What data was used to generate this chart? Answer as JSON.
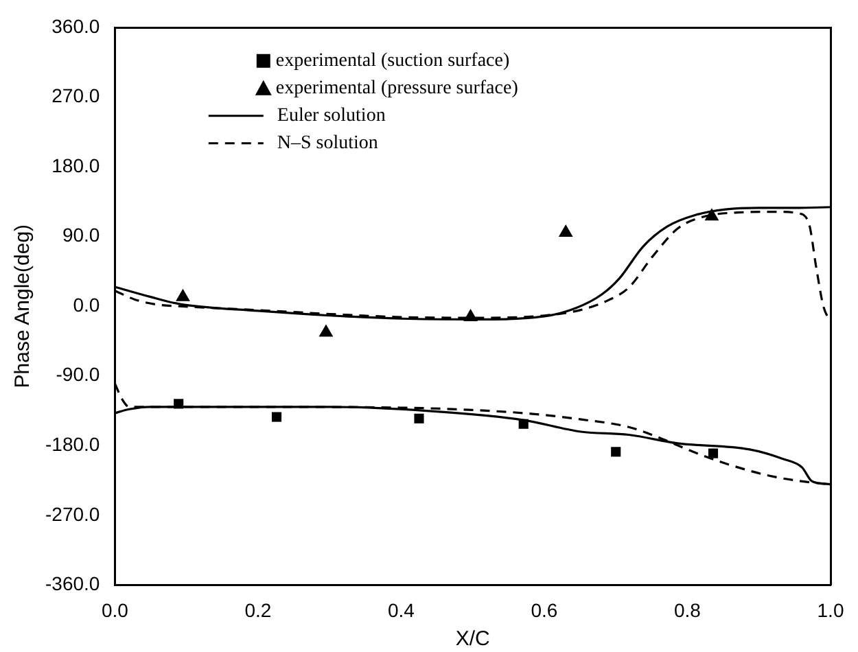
{
  "chart_data": {
    "type": "line",
    "xlabel": "X/C",
    "ylabel": "Phase Angle(deg)",
    "xlim": [
      0,
      1
    ],
    "xticks": [
      {
        "value": 0,
        "label": "0.0"
      },
      {
        "value": 0.2,
        "label": "0.2"
      },
      {
        "value": 0.4,
        "label": "0.4"
      },
      {
        "value": 0.6,
        "label": "0.6"
      },
      {
        "value": 0.8,
        "label": "0.8"
      },
      {
        "value": 1,
        "label": "1.0"
      }
    ],
    "ylim": [
      -360,
      360
    ],
    "yticks": [
      {
        "value": -360,
        "label": "-360.0"
      },
      {
        "value": -270,
        "label": "-270.0"
      },
      {
        "value": -180,
        "label": "-180.0"
      },
      {
        "value": -90,
        "label": "-90.0"
      },
      {
        "value": 0,
        "label": "0.0"
      },
      {
        "value": 90,
        "label": "90.0"
      },
      {
        "value": 180,
        "label": "180.0"
      },
      {
        "value": 270,
        "label": "270.0"
      },
      {
        "value": 360,
        "label": "360.0"
      }
    ],
    "grid": false,
    "legend": "top",
    "series": [
      {
        "name": "experimental (suction surface)",
        "type": "scatter",
        "marker": "square",
        "color": "#000000",
        "x": [
          0.089,
          0.226,
          0.425,
          0.571,
          0.7,
          0.836
        ],
        "values": [
          -126,
          -143,
          -145,
          -152,
          -188,
          -190
        ]
      },
      {
        "name": "experimental (pressure surface)",
        "type": "scatter",
        "marker": "triangle",
        "color": "#000000",
        "x": [
          0.095,
          0.295,
          0.497,
          0.63,
          0.834
        ],
        "values": [
          12,
          -34,
          -14,
          95,
          116
        ]
      },
      {
        "name": "Euler solution",
        "line_style": "solid",
        "color": "#000000",
        "x": [
          0,
          0.05,
          0.09,
          0.2,
          0.3,
          0.4,
          0.5,
          0.6,
          0.645,
          0.68,
          0.705,
          0.738,
          0.772,
          0.812,
          0.853,
          0.9,
          0.95,
          1.0
        ],
        "values": [
          25,
          12,
          3,
          -6,
          -12,
          -16,
          -17,
          -13,
          -2,
          15,
          36,
          77,
          103,
          118,
          125,
          127,
          127,
          128
        ]
      },
      {
        "line_style": "solid",
        "color": "#000000",
        "x": [
          0,
          0.02,
          0.05,
          0.1,
          0.2,
          0.3,
          0.45,
          0.571,
          0.651,
          0.718,
          0.786,
          0.887,
          0.933,
          0.96,
          0.974,
          0.99,
          1.0
        ],
        "values": [
          -138,
          -133,
          -130,
          -130,
          -130,
          -130,
          -136,
          -147,
          -162,
          -166,
          -177,
          -185,
          -197,
          -208,
          -226,
          -229,
          -230
        ]
      },
      {
        "name": "N–S solution",
        "line_style": "dashed",
        "color": "#000000",
        "x": [
          0,
          0.03,
          0.06,
          0.09,
          0.2,
          0.3,
          0.4,
          0.5,
          0.6,
          0.65,
          0.69,
          0.718,
          0.752,
          0.786,
          0.82,
          0.87,
          0.93,
          0.955,
          0.97,
          0.98,
          0.99,
          1.0
        ],
        "values": [
          20,
          8,
          2,
          0,
          -5,
          -10,
          -14,
          -15,
          -12,
          -5,
          8,
          24,
          65,
          100,
          115,
          121,
          122,
          120,
          106,
          50,
          0,
          -20
        ]
      },
      {
        "line_style": "dashed",
        "color": "#000000",
        "x": [
          0,
          0.01,
          0.02,
          0.05,
          0.2,
          0.4,
          0.5,
          0.584,
          0.65,
          0.718,
          0.764,
          0.8,
          0.853,
          0.92,
          0.987,
          1.0
        ],
        "values": [
          -100,
          -120,
          -130,
          -130,
          -130,
          -131,
          -134,
          -139,
          -146,
          -156,
          -171,
          -185,
          -203,
          -220,
          -229,
          -230
        ]
      }
    ]
  }
}
